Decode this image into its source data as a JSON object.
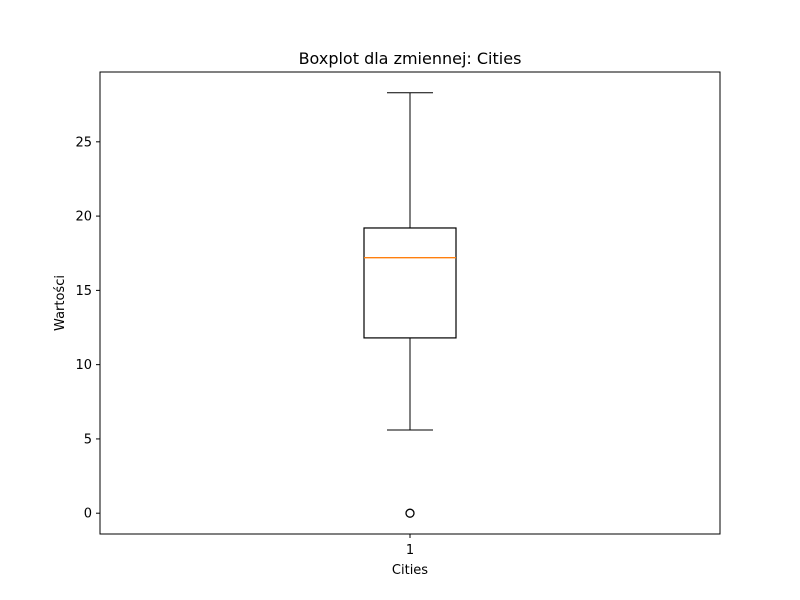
{
  "chart_data": {
    "type": "box",
    "title": "Boxplot dla zmiennej: Cities",
    "xlabel": "Cities",
    "ylabel": "Wartości",
    "categories": [
      "1"
    ],
    "boxes": [
      {
        "category": "1",
        "whisker_low": 5.6,
        "q1": 11.8,
        "median": 17.2,
        "q3": 19.2,
        "whisker_high": 28.3,
        "outliers": [
          0
        ]
      }
    ],
    "ylim": [
      -1.4,
      29.7
    ],
    "yticks": [
      0,
      5,
      10,
      15,
      20,
      25
    ],
    "grid": false,
    "colors": {
      "box": "#000000",
      "median": "#ff7f0e",
      "whisker": "#000000",
      "outlier": "#000000"
    }
  }
}
